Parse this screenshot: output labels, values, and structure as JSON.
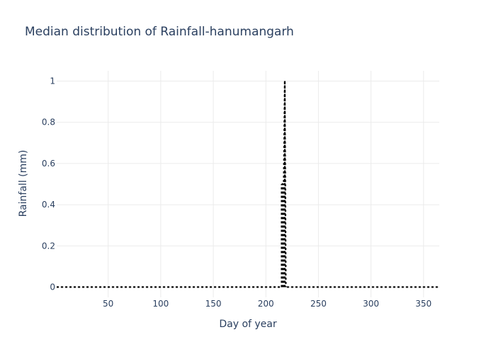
{
  "chart_data": {
    "type": "line",
    "title": "Median distribution of Rainfall-hanumangarh",
    "xlabel": "Day of year",
    "ylabel": "Rainfall (mm)",
    "xlim": [
      1,
      365
    ],
    "ylim": [
      -0.05,
      1.05
    ],
    "x_ticks": [
      50,
      100,
      150,
      200,
      250,
      300,
      350
    ],
    "y_ticks": [
      0,
      0.2,
      0.4,
      0.6,
      0.8,
      1
    ],
    "y_tick_labels": [
      "0",
      "0.2",
      "0.4",
      "0.6",
      "0.8",
      "1"
    ],
    "grid": true,
    "line_style": "dotted",
    "line_color": "#000000",
    "series": [
      {
        "segments": [
          [
            [
              1,
              0
            ],
            [
              214,
              0
            ]
          ],
          [
            [
              215,
              0.5
            ],
            [
              216,
              0.5
            ],
            [
              217,
              0.5
            ],
            [
              218,
              1.0
            ],
            [
              219,
              0.0
            ]
          ],
          [
            [
              220,
              0
            ],
            [
              365,
              0
            ]
          ]
        ],
        "points": [
          [
            215,
            0.5
          ],
          [
            216,
            0.5
          ],
          [
            217,
            0.5
          ],
          [
            218,
            1.0
          ]
        ]
      }
    ]
  }
}
